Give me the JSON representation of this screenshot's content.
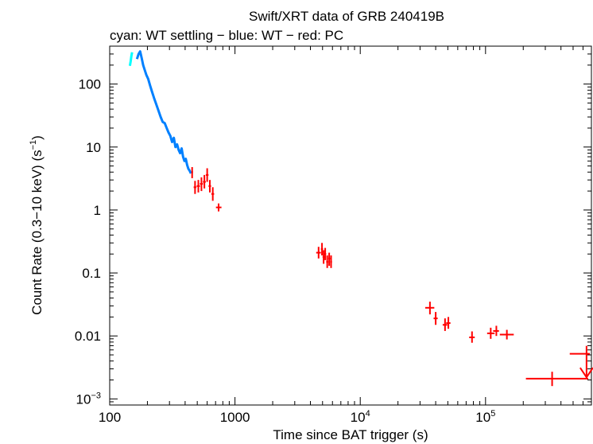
{
  "chart_data": {
    "type": "scatter",
    "title": "Swift/XRT data of GRB 240419B",
    "subtitle": "cyan: WT settling − blue: WT − red: PC",
    "xlabel": "Time since BAT trigger (s)",
    "ylabel": "Count Rate (0.3−10 keV) (s",
    "ylabel_sup": "−1",
    "ylabel_close": ")",
    "x_scale": "log",
    "y_scale": "log",
    "xlim": [
      100,
      700000
    ],
    "ylim": [
      0.0008,
      400
    ],
    "grid": false,
    "x_ticks": [
      {
        "value": 100,
        "base": "100",
        "sup": ""
      },
      {
        "value": 1000,
        "base": "1000",
        "sup": ""
      },
      {
        "value": 10000,
        "base": "10",
        "sup": "4"
      },
      {
        "value": 100000,
        "base": "10",
        "sup": "5"
      }
    ],
    "y_ticks": [
      {
        "value": 0.001,
        "base": "10",
        "sup": "−3"
      },
      {
        "value": 0.01,
        "base": "0.01",
        "sup": ""
      },
      {
        "value": 0.1,
        "base": "0.1",
        "sup": ""
      },
      {
        "value": 1,
        "base": "1",
        "sup": ""
      },
      {
        "value": 10,
        "base": "10",
        "sup": ""
      },
      {
        "value": 100,
        "base": "100",
        "sup": ""
      }
    ],
    "series": [
      {
        "mode": "WT settling",
        "color": "#00ffff",
        "style": "line",
        "points": [
          [
            145,
            195
          ],
          [
            147,
            230
          ],
          [
            149,
            280
          ],
          [
            151,
            320
          ]
        ]
      },
      {
        "mode": "WT",
        "color": "#0080ff",
        "style": "line",
        "points": [
          [
            165,
            250
          ],
          [
            170,
            300
          ],
          [
            175,
            330
          ],
          [
            180,
            260
          ],
          [
            185,
            200
          ],
          [
            190,
            170
          ],
          [
            196,
            140
          ],
          [
            203,
            120
          ],
          [
            210,
            95
          ],
          [
            218,
            75
          ],
          [
            226,
            60
          ],
          [
            235,
            48
          ],
          [
            245,
            38
          ],
          [
            255,
            30
          ],
          [
            265,
            25
          ],
          [
            275,
            24
          ],
          [
            285,
            20
          ],
          [
            295,
            17
          ],
          [
            305,
            15
          ],
          [
            315,
            12
          ],
          [
            325,
            14
          ],
          [
            335,
            10
          ],
          [
            345,
            11
          ],
          [
            355,
            9
          ],
          [
            365,
            8
          ],
          [
            375,
            9.5
          ],
          [
            385,
            7
          ],
          [
            395,
            6
          ],
          [
            405,
            6.5
          ],
          [
            415,
            5.2
          ],
          [
            425,
            4.5
          ],
          [
            435,
            4.2
          ],
          [
            445,
            3.8
          ]
        ]
      },
      {
        "mode": "PC",
        "color": "#ff0000",
        "style": "errorbar",
        "points": [
          {
            "x": 455,
            "y": 4.0,
            "xlo": 450,
            "xhi": 462,
            "ylo": 3.2,
            "yhi": 4.8
          },
          {
            "x": 480,
            "y": 2.3,
            "xlo": 468,
            "xhi": 492,
            "ylo": 1.8,
            "yhi": 2.9
          },
          {
            "x": 510,
            "y": 2.4,
            "xlo": 495,
            "xhi": 525,
            "ylo": 1.9,
            "yhi": 3.0
          },
          {
            "x": 540,
            "y": 2.6,
            "xlo": 525,
            "xhi": 555,
            "ylo": 2.0,
            "yhi": 3.3
          },
          {
            "x": 570,
            "y": 2.8,
            "xlo": 555,
            "xhi": 585,
            "ylo": 2.2,
            "yhi": 3.6
          },
          {
            "x": 600,
            "y": 3.6,
            "xlo": 585,
            "xhi": 615,
            "ylo": 2.8,
            "yhi": 4.6
          },
          {
            "x": 630,
            "y": 2.4,
            "xlo": 615,
            "xhi": 645,
            "ylo": 1.9,
            "yhi": 3.0
          },
          {
            "x": 665,
            "y": 1.8,
            "xlo": 648,
            "xhi": 682,
            "ylo": 1.4,
            "yhi": 2.3
          },
          {
            "x": 740,
            "y": 1.1,
            "xlo": 705,
            "xhi": 780,
            "ylo": 0.95,
            "yhi": 1.27
          },
          {
            "x": 4650,
            "y": 0.21,
            "xlo": 4450,
            "xhi": 4850,
            "ylo": 0.17,
            "yhi": 0.26
          },
          {
            "x": 4950,
            "y": 0.24,
            "xlo": 4850,
            "xhi": 5050,
            "ylo": 0.19,
            "yhi": 0.3
          },
          {
            "x": 5100,
            "y": 0.18,
            "xlo": 5000,
            "xhi": 5200,
            "ylo": 0.14,
            "yhi": 0.23
          },
          {
            "x": 5250,
            "y": 0.2,
            "xlo": 5150,
            "xhi": 5350,
            "ylo": 0.16,
            "yhi": 0.25
          },
          {
            "x": 5450,
            "y": 0.15,
            "xlo": 5350,
            "xhi": 5550,
            "ylo": 0.12,
            "yhi": 0.19
          },
          {
            "x": 5650,
            "y": 0.17,
            "xlo": 5550,
            "xhi": 5750,
            "ylo": 0.13,
            "yhi": 0.21
          },
          {
            "x": 5850,
            "y": 0.15,
            "xlo": 5750,
            "xhi": 5950,
            "ylo": 0.12,
            "yhi": 0.19
          },
          {
            "x": 36000,
            "y": 0.028,
            "xlo": 33000,
            "xhi": 39000,
            "ylo": 0.022,
            "yhi": 0.035
          },
          {
            "x": 40000,
            "y": 0.019,
            "xlo": 38500,
            "xhi": 41500,
            "ylo": 0.015,
            "yhi": 0.024
          },
          {
            "x": 47500,
            "y": 0.015,
            "xlo": 45500,
            "xhi": 49500,
            "ylo": 0.012,
            "yhi": 0.019
          },
          {
            "x": 50500,
            "y": 0.016,
            "xlo": 48500,
            "xhi": 52500,
            "ylo": 0.013,
            "yhi": 0.02
          },
          {
            "x": 78000,
            "y": 0.0095,
            "xlo": 74000,
            "xhi": 82000,
            "ylo": 0.0078,
            "yhi": 0.0118
          },
          {
            "x": 110000,
            "y": 0.011,
            "xlo": 103000,
            "xhi": 118000,
            "ylo": 0.009,
            "yhi": 0.0135
          },
          {
            "x": 122000,
            "y": 0.012,
            "xlo": 115000,
            "xhi": 128000,
            "ylo": 0.01,
            "yhi": 0.0145
          },
          {
            "x": 148000,
            "y": 0.0105,
            "xlo": 130000,
            "xhi": 168000,
            "ylo": 0.0088,
            "yhi": 0.0125
          },
          {
            "x": 340000,
            "y": 0.0021,
            "xlo": 210000,
            "xhi": 660000,
            "ylo": 0.0016,
            "yhi": 0.0027
          }
        ]
      }
    ],
    "upper_limits": [
      {
        "x": 640000,
        "y": 0.0052,
        "xlo": 470000,
        "xhi": 680000,
        "arrow_to": 0.0022,
        "color": "#ff0000"
      }
    ]
  }
}
